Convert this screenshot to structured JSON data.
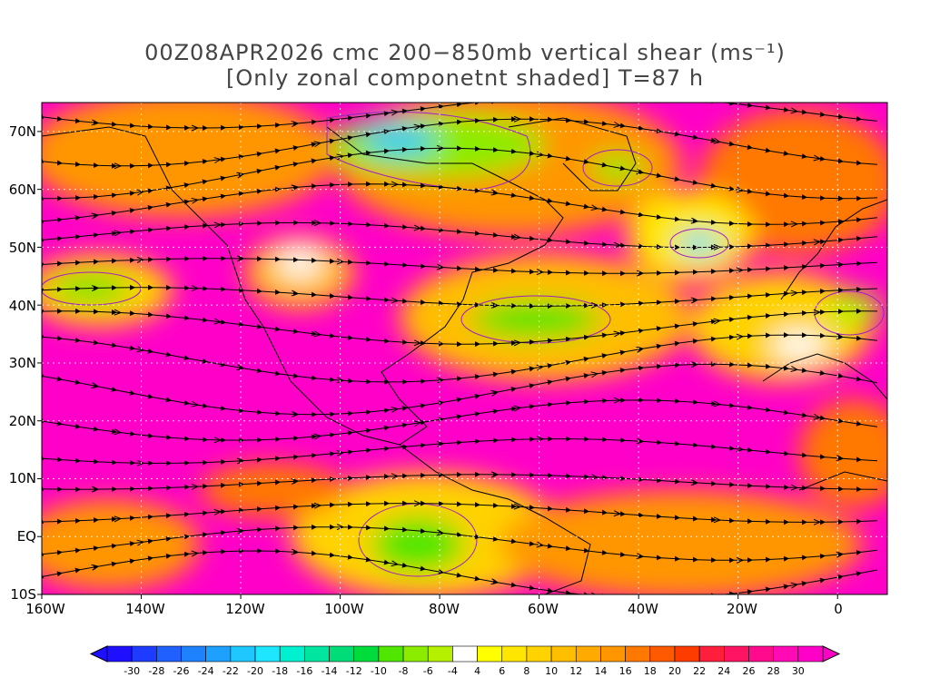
{
  "title": {
    "line1": "00Z08APR2026 cmc 200−850mb vertical shear (ms⁻¹)",
    "line2": "[Only zonal componetnt shaded] T=87 h"
  },
  "map": {
    "lat_labels": [
      "70N",
      "60N",
      "50N",
      "40N",
      "30N",
      "20N",
      "10N",
      "EQ",
      "10S"
    ],
    "lon_labels": [
      "160W",
      "140W",
      "120W",
      "100W",
      "80W",
      "60W",
      "40W",
      "20W",
      "0"
    ],
    "extent": {
      "lon_min": -160,
      "lon_max": 10,
      "lat_min": -10,
      "lat_max": 75
    },
    "contour_color": "#a020c0",
    "streamline_color": "#000000"
  },
  "colorbar": {
    "tick_labels": [
      "-30",
      "-28",
      "-26",
      "-24",
      "-22",
      "-20",
      "-18",
      "-16",
      "-14",
      "-12",
      "-10",
      "-8",
      "-6",
      "-4",
      "4",
      "6",
      "8",
      "10",
      "12",
      "14",
      "16",
      "18",
      "20",
      "22",
      "24",
      "26",
      "28",
      "30"
    ],
    "colors": [
      "#1e10ff",
      "#1e3cff",
      "#2060ff",
      "#1e82ff",
      "#1ea0ff",
      "#1ec8ff",
      "#1ee6ff",
      "#00f0d0",
      "#00e6a0",
      "#00dc78",
      "#00dc3c",
      "#50e600",
      "#8cec00",
      "#b4f000",
      "#ffffff",
      "#ffff00",
      "#ffe600",
      "#ffd200",
      "#ffbe00",
      "#ffaa00",
      "#ff9600",
      "#ff7800",
      "#ff5a00",
      "#ff3c00",
      "#ff1e3c",
      "#ff1464",
      "#ff0a8c",
      "#ff0ab4",
      "#ff00c8"
    ]
  }
}
